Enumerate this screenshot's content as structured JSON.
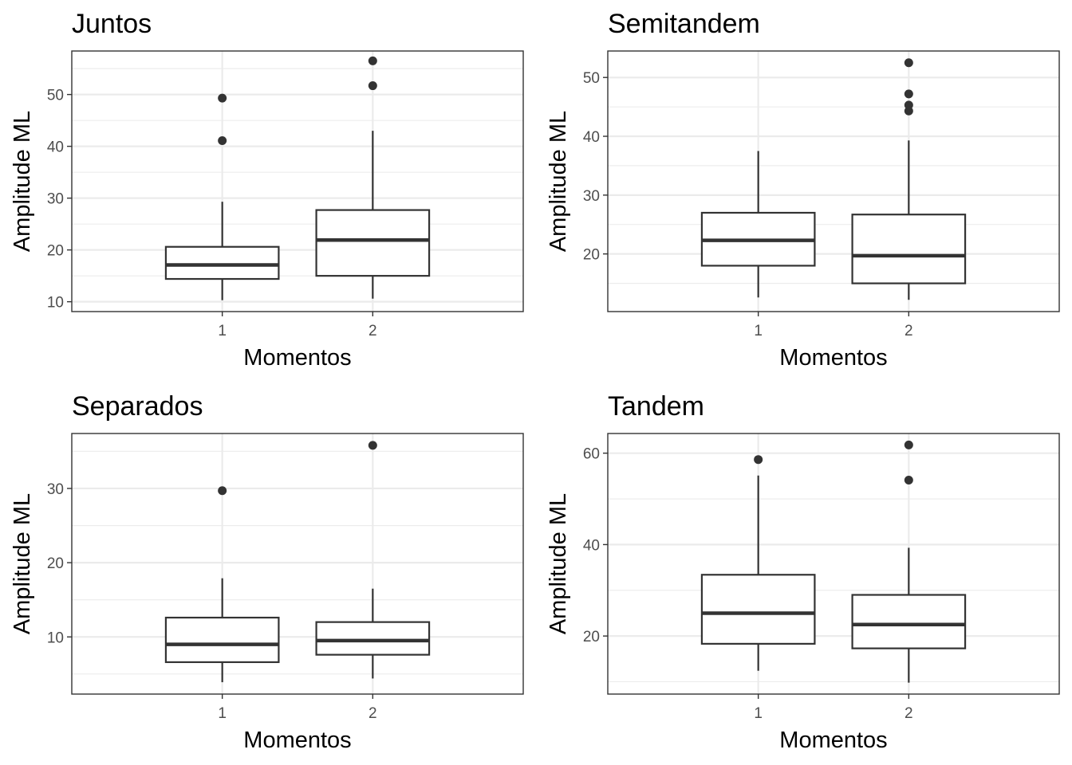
{
  "chart_data": [
    {
      "type": "box",
      "title": "Juntos",
      "xlabel": "Momentos",
      "ylabel": "Amplitude ML",
      "categories": [
        "1",
        "2"
      ],
      "ylim": [
        8.1,
        58.4
      ],
      "yticks": [
        10,
        20,
        30,
        40,
        50
      ],
      "grid": true,
      "boxes": [
        {
          "category": "1",
          "whisker_low": 10.3,
          "q1": 14.4,
          "median": 17.1,
          "q3": 20.6,
          "whisker_high": 29.3,
          "outliers": [
            41.1,
            49.3
          ]
        },
        {
          "category": "2",
          "whisker_low": 10.6,
          "q1": 15.0,
          "median": 21.9,
          "q3": 27.7,
          "whisker_high": 43.0,
          "outliers": [
            51.7,
            56.5
          ]
        }
      ]
    },
    {
      "type": "box",
      "title": "Semitandem",
      "xlabel": "Momentos",
      "ylabel": "Amplitude ML",
      "categories": [
        "1",
        "2"
      ],
      "ylim": [
        10.2,
        54.5
      ],
      "yticks": [
        20,
        30,
        40,
        50
      ],
      "grid": true,
      "boxes": [
        {
          "category": "1",
          "whisker_low": 12.6,
          "q1": 18.0,
          "median": 22.3,
          "q3": 27.0,
          "whisker_high": 37.5,
          "outliers": []
        },
        {
          "category": "2",
          "whisker_low": 12.2,
          "q1": 15.0,
          "median": 19.7,
          "q3": 26.7,
          "whisker_high": 39.3,
          "outliers": [
            44.3,
            45.3,
            47.2,
            52.5
          ]
        }
      ]
    },
    {
      "type": "box",
      "title": "Separados",
      "xlabel": "Momentos",
      "ylabel": "Amplitude ML",
      "categories": [
        "1",
        "2"
      ],
      "ylim": [
        2.3,
        37.4
      ],
      "yticks": [
        10,
        20,
        30
      ],
      "grid": true,
      "boxes": [
        {
          "category": "1",
          "whisker_low": 3.9,
          "q1": 6.6,
          "median": 9.0,
          "q3": 12.6,
          "whisker_high": 17.9,
          "outliers": [
            29.7
          ]
        },
        {
          "category": "2",
          "whisker_low": 4.4,
          "q1": 7.6,
          "median": 9.5,
          "q3": 12.0,
          "whisker_high": 16.5,
          "outliers": [
            35.8
          ]
        }
      ]
    },
    {
      "type": "box",
      "title": "Tandem",
      "xlabel": "Momentos",
      "ylabel": "Amplitude ML",
      "categories": [
        "1",
        "2"
      ],
      "ylim": [
        7.3,
        64.3
      ],
      "yticks": [
        20,
        40,
        60
      ],
      "grid": true,
      "boxes": [
        {
          "category": "1",
          "whisker_low": 12.4,
          "q1": 18.3,
          "median": 25.0,
          "q3": 33.4,
          "whisker_high": 55.1,
          "outliers": [
            58.6
          ]
        },
        {
          "category": "2",
          "whisker_low": 9.8,
          "q1": 17.3,
          "median": 22.5,
          "q3": 29.0,
          "whisker_high": 39.3,
          "outliers": [
            54.1,
            61.8
          ]
        }
      ]
    }
  ]
}
